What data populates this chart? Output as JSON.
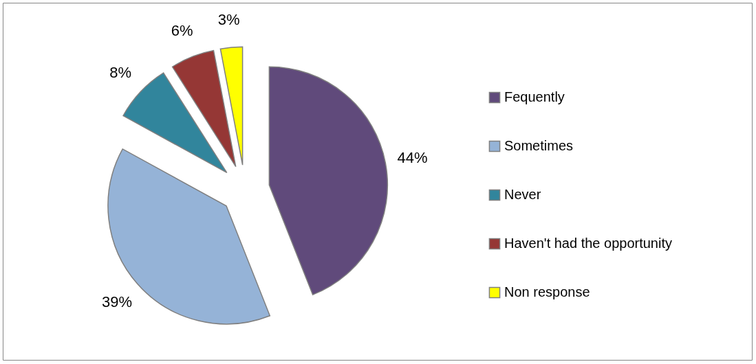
{
  "chart_data": {
    "type": "pie",
    "categories": [
      "Fequently",
      "Sometimes",
      "Never",
      "Haven't had the opportunity",
      "Non response"
    ],
    "values": [
      44,
      39,
      8,
      6,
      3
    ],
    "colors": [
      "#604a7b",
      "#95b3d7",
      "#31859c",
      "#953735",
      "#ffff00"
    ],
    "value_labels": [
      "44%",
      "39%",
      "8%",
      "6%",
      "3%"
    ],
    "legend": "right"
  }
}
